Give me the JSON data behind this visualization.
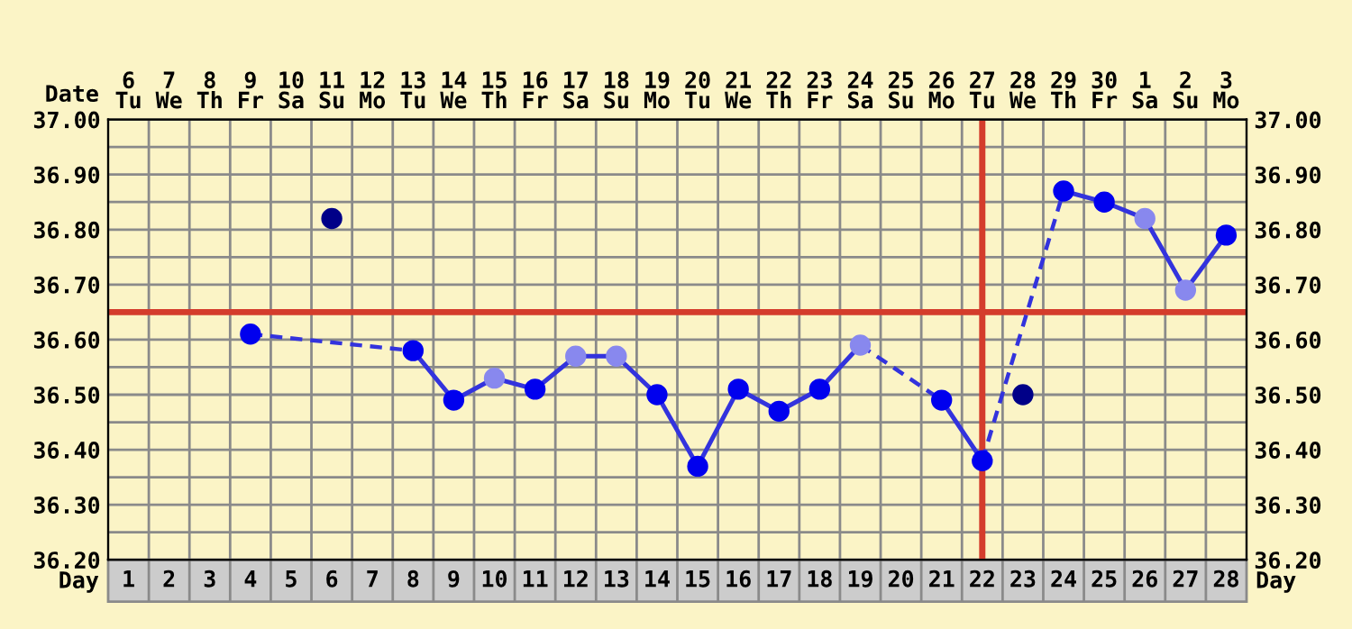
{
  "chart_data": {
    "type": "line",
    "xlabel": "Day",
    "x2label": "Date",
    "categories": [
      "1",
      "2",
      "3",
      "4",
      "5",
      "6",
      "7",
      "8",
      "9",
      "10",
      "11",
      "12",
      "13",
      "14",
      "15",
      "16",
      "17",
      "18",
      "19",
      "20",
      "21",
      "22",
      "23",
      "24",
      "25",
      "26",
      "27",
      "28"
    ],
    "annotations": [
      "6\nTu",
      "7\nWe",
      "8\nTh",
      "9\nFr",
      "10\nSa",
      "11\nSu",
      "12\nMo",
      "13\nTu",
      "14\nWe",
      "15\nTh",
      "16\nFr",
      "17\nSa",
      "18\nSu",
      "19\nMo",
      "20\nTu",
      "21\nWe",
      "22\nTh",
      "23\nFr",
      "24\nSa",
      "25\nSu",
      "26\nMo",
      "27\nTu",
      "28\nWe",
      "29\nTh",
      "30\nFr",
      "1\nSa",
      "2\nSu",
      "3\nMo"
    ],
    "series": [
      {
        "color": "#3333dd",
        "values": [
          null,
          null,
          null,
          36.61,
          null,
          null,
          null,
          36.58,
          36.49,
          36.53,
          36.51,
          36.57,
          36.57,
          36.5,
          36.37,
          36.51,
          36.47,
          36.51,
          36.59,
          null,
          36.49,
          36.38,
          null,
          36.87,
          36.85,
          36.82,
          36.69,
          36.79
        ]
      },
      {
        "type": "scatter",
        "color": "#0000ee",
        "marker": "circle",
        "values": [
          null,
          null,
          null,
          36.61,
          null,
          null,
          null,
          36.58,
          36.49,
          null,
          36.51,
          null,
          null,
          36.5,
          36.37,
          36.51,
          36.47,
          36.51,
          null,
          null,
          36.49,
          36.38,
          null,
          36.87,
          36.85,
          null,
          null,
          36.79
        ]
      },
      {
        "type": "scatter",
        "color": "#8888ee",
        "marker": "circle",
        "values": [
          null,
          null,
          null,
          null,
          null,
          null,
          null,
          null,
          null,
          36.53,
          null,
          36.57,
          36.57,
          null,
          null,
          null,
          null,
          null,
          36.59,
          null,
          null,
          null,
          null,
          null,
          null,
          36.82,
          36.69,
          null
        ]
      },
      {
        "type": "scatter",
        "color": "#000088",
        "marker": "circle",
        "values": [
          null,
          null,
          null,
          null,
          null,
          36.82,
          null,
          null,
          null,
          null,
          null,
          null,
          null,
          null,
          null,
          null,
          null,
          null,
          null,
          null,
          null,
          null,
          36.5,
          null,
          null,
          null,
          null,
          null
        ]
      }
    ],
    "ylim": [
      36.2,
      37.0
    ],
    "yticks": [
      {
        "value": 36.2,
        "label": "36.20"
      },
      {
        "value": 36.25,
        "label": null
      },
      {
        "value": 36.3,
        "label": "36.30"
      },
      {
        "value": 36.35,
        "label": null
      },
      {
        "value": 36.4,
        "label": "36.40"
      },
      {
        "value": 36.45,
        "label": null
      },
      {
        "value": 36.5,
        "label": "36.50"
      },
      {
        "value": 36.55,
        "label": null
      },
      {
        "value": 36.6,
        "label": "36.60"
      },
      {
        "value": 36.7,
        "label": "36.70"
      },
      {
        "value": 36.75,
        "label": null
      },
      {
        "value": 36.8,
        "label": "36.80"
      },
      {
        "value": 36.85,
        "label": null
      },
      {
        "value": 36.9,
        "label": "36.90"
      },
      {
        "value": 36.95,
        "label": null
      },
      {
        "value": 37.0,
        "label": "37.00"
      }
    ],
    "y2lim": [
      36.2,
      37.0
    ],
    "y2ticks": [
      {
        "value": 36.2,
        "label": "36.20"
      },
      {
        "value": 36.25,
        "label": null
      },
      {
        "value": 36.3,
        "label": "36.30"
      },
      {
        "value": 36.35,
        "label": null
      },
      {
        "value": 36.4,
        "label": "36.40"
      },
      {
        "value": 36.45,
        "label": null
      },
      {
        "value": 36.5,
        "label": "36.50"
      },
      {
        "value": 36.55,
        "label": null
      },
      {
        "value": 36.6,
        "label": "36.60"
      },
      {
        "value": 36.7,
        "label": "36.70"
      },
      {
        "value": 36.75,
        "label": null
      },
      {
        "value": 36.8,
        "label": "36.80"
      },
      {
        "value": 36.85,
        "label": null
      },
      {
        "value": 36.9,
        "label": "36.90"
      },
      {
        "value": 36.95,
        "label": null
      },
      {
        "value": 37.0,
        "label": "37.00"
      }
    ],
    "ref_lines": [
      {
        "axis": "y",
        "value": 36.65,
        "label": null,
        "color": "#d43c2c"
      },
      {
        "axis": "x",
        "value": "22",
        "label": null,
        "color": "#d43c2c"
      }
    ],
    "grid": true,
    "legend": false
  }
}
